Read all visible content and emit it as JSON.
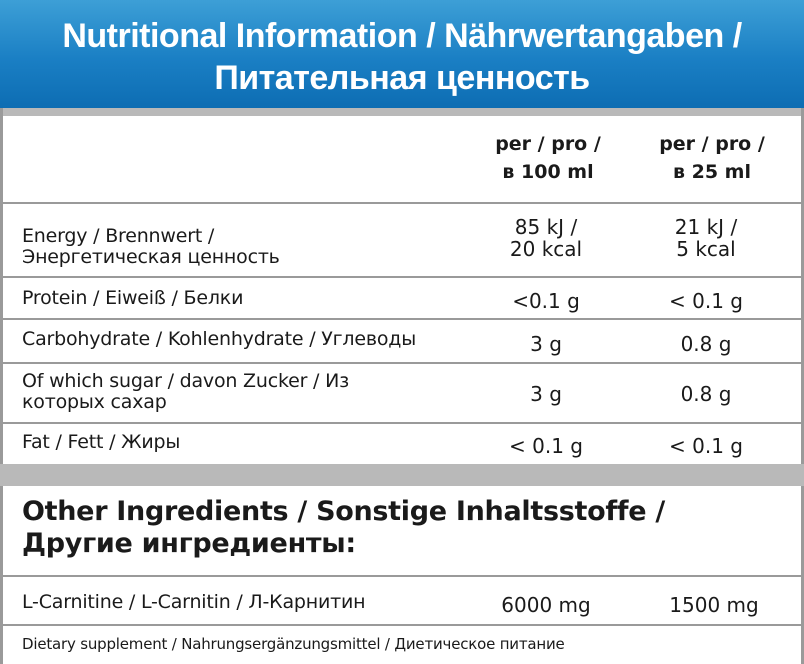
{
  "header": {
    "title_line1": "Nutritional Information / Nährwertangaben /",
    "title_line2": "Питательная ценность"
  },
  "table": {
    "columns": [
      {
        "line1": "per / pro /",
        "line2": "в 100 ml"
      },
      {
        "line1": "per / pro /",
        "line2": "в 25 ml"
      }
    ],
    "rows": [
      {
        "label_line1": "Energy / Brennwert /",
        "label_line2": "Энергетическая ценность",
        "v100_line1": "85 kJ /",
        "v100_line2": "20 kcal",
        "v25_line1": "21 kJ /",
        "v25_line2": "5 kcal"
      },
      {
        "label": "Protein / Eiweiß / Белки",
        "v100": "<0.1 g",
        "v25": "< 0.1 g"
      },
      {
        "label": "Carbohydrate / Kohlenhydrate / Углеводы",
        "v100": "3 g",
        "v25": "0.8 g"
      },
      {
        "label_line1": "Of which sugar / davon Zucker / Из",
        "label_line2": "которых сахар",
        "v100": "3 g",
        "v25": "0.8 g"
      },
      {
        "label": "Fat / Fett / Жиры",
        "v100": "< 0.1 g",
        "v25": "< 0.1 g"
      }
    ]
  },
  "other_ingredients": {
    "title_line1": "Other Ingredients / Sonstige Inhaltsstoffe /",
    "title_line2": "Другие ингредиенты:",
    "rows": [
      {
        "label": "L-Carnitine / L-Carnitin / Л-Карнитин",
        "v100": "6000 mg",
        "v25": "1500 mg"
      }
    ]
  },
  "footer": {
    "text": "Dietary supplement / Nahrungsergänzungsmittel / Диетическое питание"
  },
  "colors": {
    "header_blue": "#1a7fc4",
    "rule_gray": "#9a9a9a",
    "band_gray": "#b9b9b9"
  }
}
